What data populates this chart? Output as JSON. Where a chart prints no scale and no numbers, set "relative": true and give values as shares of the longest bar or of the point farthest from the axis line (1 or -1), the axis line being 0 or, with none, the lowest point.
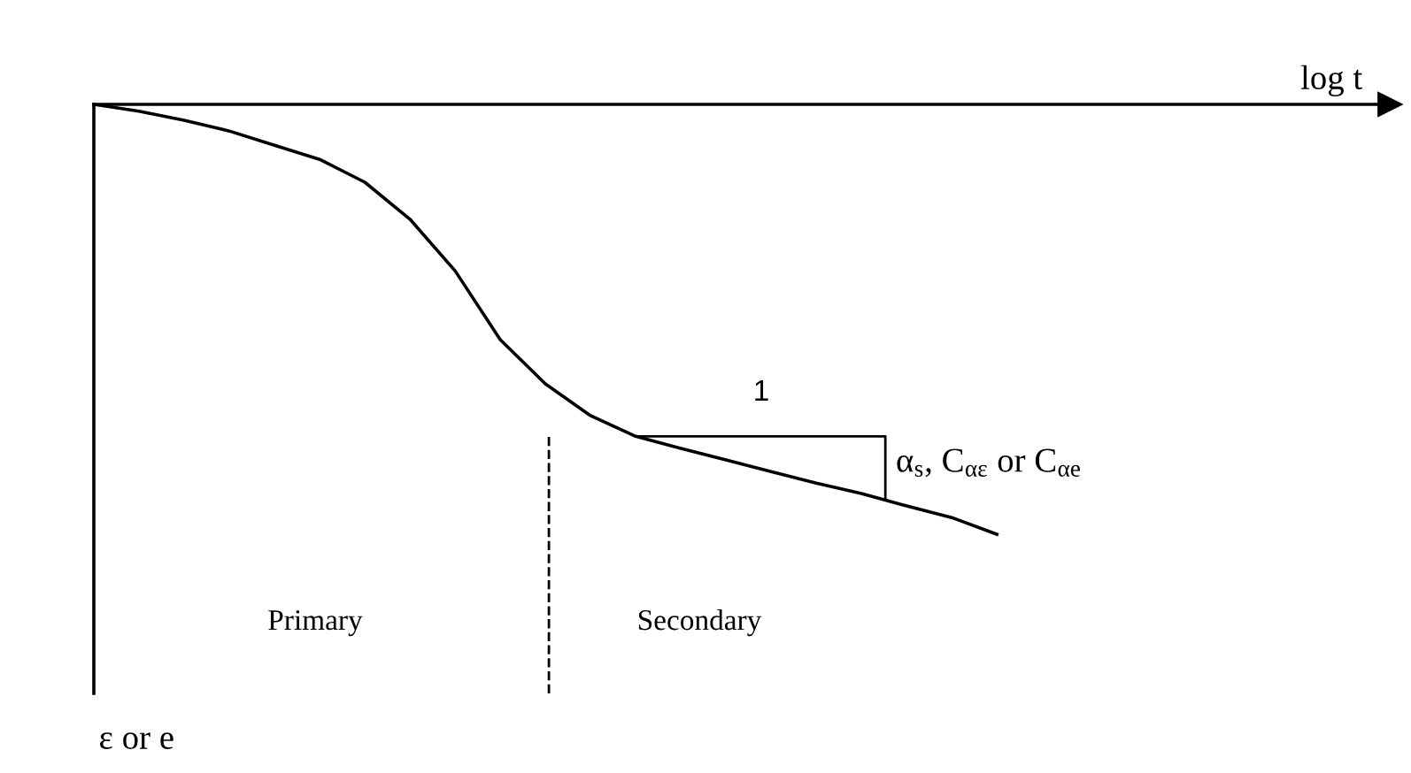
{
  "chart_data": {
    "type": "line",
    "relative": true,
    "categories": [
      null,
      null,
      null,
      null,
      null,
      null,
      null,
      null,
      null,
      null,
      null,
      null,
      null,
      null,
      null,
      null,
      null,
      null,
      null,
      null,
      null
    ],
    "series": [
      {
        "color": "#000000",
        "values": [
          0,
          -0.016,
          -0.037,
          -0.062,
          -0.095,
          -0.128,
          -0.181,
          -0.267,
          -0.387,
          -0.547,
          -0.65,
          -0.724,
          -0.772,
          -0.8,
          -0.827,
          -0.854,
          -0.881,
          -0.905,
          -0.934,
          -0.961,
          -1
        ]
      }
    ],
    "annotations": [
      "log t",
      "ε or e",
      "Primary",
      "Secondary",
      "1",
      "α$_{s}$, C$_{αε}$ or C$_{αe}$"
    ]
  }
}
